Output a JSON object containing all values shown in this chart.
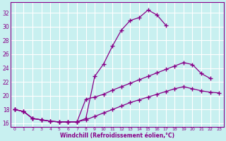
{
  "background_color": "#c8f0f0",
  "line_color": "#880088",
  "grid_color": "#ffffff",
  "xlabel": "Windchill (Refroidissement éolien,°C)",
  "xlim": [
    -0.5,
    23.5
  ],
  "ylim": [
    15.5,
    33.5
  ],
  "yticks": [
    16,
    18,
    20,
    22,
    24,
    26,
    28,
    30,
    32
  ],
  "xticks": [
    0,
    1,
    2,
    3,
    4,
    5,
    6,
    7,
    8,
    9,
    10,
    11,
    12,
    13,
    14,
    15,
    16,
    17,
    18,
    19,
    20,
    21,
    22,
    23
  ],
  "line_upper_x": [
    0,
    1,
    2,
    3,
    4,
    5,
    6,
    7,
    8,
    9,
    10,
    11,
    12,
    13,
    14,
    15,
    16,
    17
  ],
  "line_upper_y": [
    18.0,
    17.7,
    16.7,
    16.5,
    16.3,
    16.2,
    16.2,
    16.2,
    16.7,
    22.8,
    24.6,
    27.2,
    29.5,
    30.9,
    31.3,
    32.4,
    31.7,
    30.2
  ],
  "line_mid_x": [
    0,
    1,
    2,
    3,
    4,
    5,
    6,
    7,
    8,
    9,
    10,
    11,
    12,
    13,
    14,
    15,
    16,
    17,
    18,
    19,
    20,
    21,
    22
  ],
  "line_mid_y": [
    18.0,
    17.7,
    16.7,
    16.5,
    16.3,
    16.2,
    16.2,
    16.2,
    19.5,
    19.8,
    20.2,
    20.8,
    21.3,
    21.8,
    22.3,
    22.8,
    23.3,
    23.8,
    24.3,
    24.8,
    24.5,
    23.2,
    22.5
  ],
  "line_lower_x": [
    0,
    1,
    2,
    3,
    4,
    5,
    6,
    7,
    8,
    9,
    10,
    11,
    12,
    13,
    14,
    15,
    16,
    17,
    18,
    19,
    20,
    21,
    22,
    23
  ],
  "line_lower_y": [
    18.0,
    17.7,
    16.7,
    16.5,
    16.3,
    16.2,
    16.2,
    16.2,
    16.5,
    17.0,
    17.5,
    18.0,
    18.5,
    19.0,
    19.4,
    19.8,
    20.2,
    20.6,
    21.0,
    21.3,
    21.0,
    20.7,
    20.5,
    20.4
  ]
}
